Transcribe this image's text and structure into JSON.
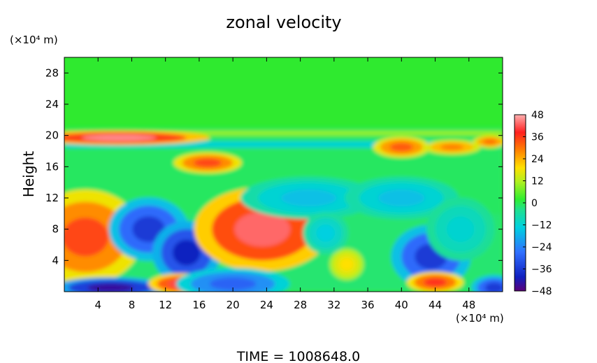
{
  "chart_data": {
    "type": "heatmap",
    "title": "zonal velocity",
    "ylabel": "Height",
    "x_unit": "(×10⁴ m)",
    "y_unit": "(×10⁴ m)",
    "xlim": [
      0,
      52
    ],
    "ylim": [
      0,
      30
    ],
    "x_ticks": [
      4,
      8,
      12,
      16,
      20,
      24,
      28,
      32,
      36,
      40,
      44,
      48
    ],
    "y_ticks": [
      4,
      8,
      12,
      16,
      20,
      24,
      28
    ],
    "colorbar": {
      "range": [
        -48,
        48
      ],
      "ticks": [
        48,
        36,
        24,
        12,
        0,
        -12,
        -24,
        -36,
        -48
      ]
    },
    "footer": "TIME = 1008648.0",
    "features": [
      {
        "x": 2.5,
        "y": 7,
        "value": 36
      },
      {
        "x": 10,
        "y": 8,
        "value": -36
      },
      {
        "x": 14.5,
        "y": 5,
        "value": -40
      },
      {
        "x": 5.5,
        "y": 0.5,
        "value": -44
      },
      {
        "x": 14,
        "y": 1,
        "value": 42
      },
      {
        "x": 23.5,
        "y": 8,
        "value": 44
      },
      {
        "x": 20,
        "y": 1,
        "value": -30
      },
      {
        "x": 33.5,
        "y": 3.5,
        "value": 20
      },
      {
        "x": 43.5,
        "y": 4.5,
        "value": -36
      },
      {
        "x": 44,
        "y": 1.2,
        "value": 38
      },
      {
        "x": 6.5,
        "y": 19.7,
        "value": 46
      },
      {
        "x": 17,
        "y": 16.5,
        "value": 36
      },
      {
        "x": 40,
        "y": 18.5,
        "value": 34
      },
      {
        "x": 46,
        "y": 18.5,
        "value": 30
      },
      {
        "x": 50.5,
        "y": 19.2,
        "value": 32
      },
      {
        "x": 29,
        "y": 12,
        "value": -18
      },
      {
        "x": 40,
        "y": 12,
        "value": -18
      },
      {
        "x": 51,
        "y": 0.5,
        "value": -36
      },
      {
        "x": 31,
        "y": 7.5,
        "value": -16
      },
      {
        "x": 47,
        "y": 8,
        "value": -14
      }
    ]
  }
}
